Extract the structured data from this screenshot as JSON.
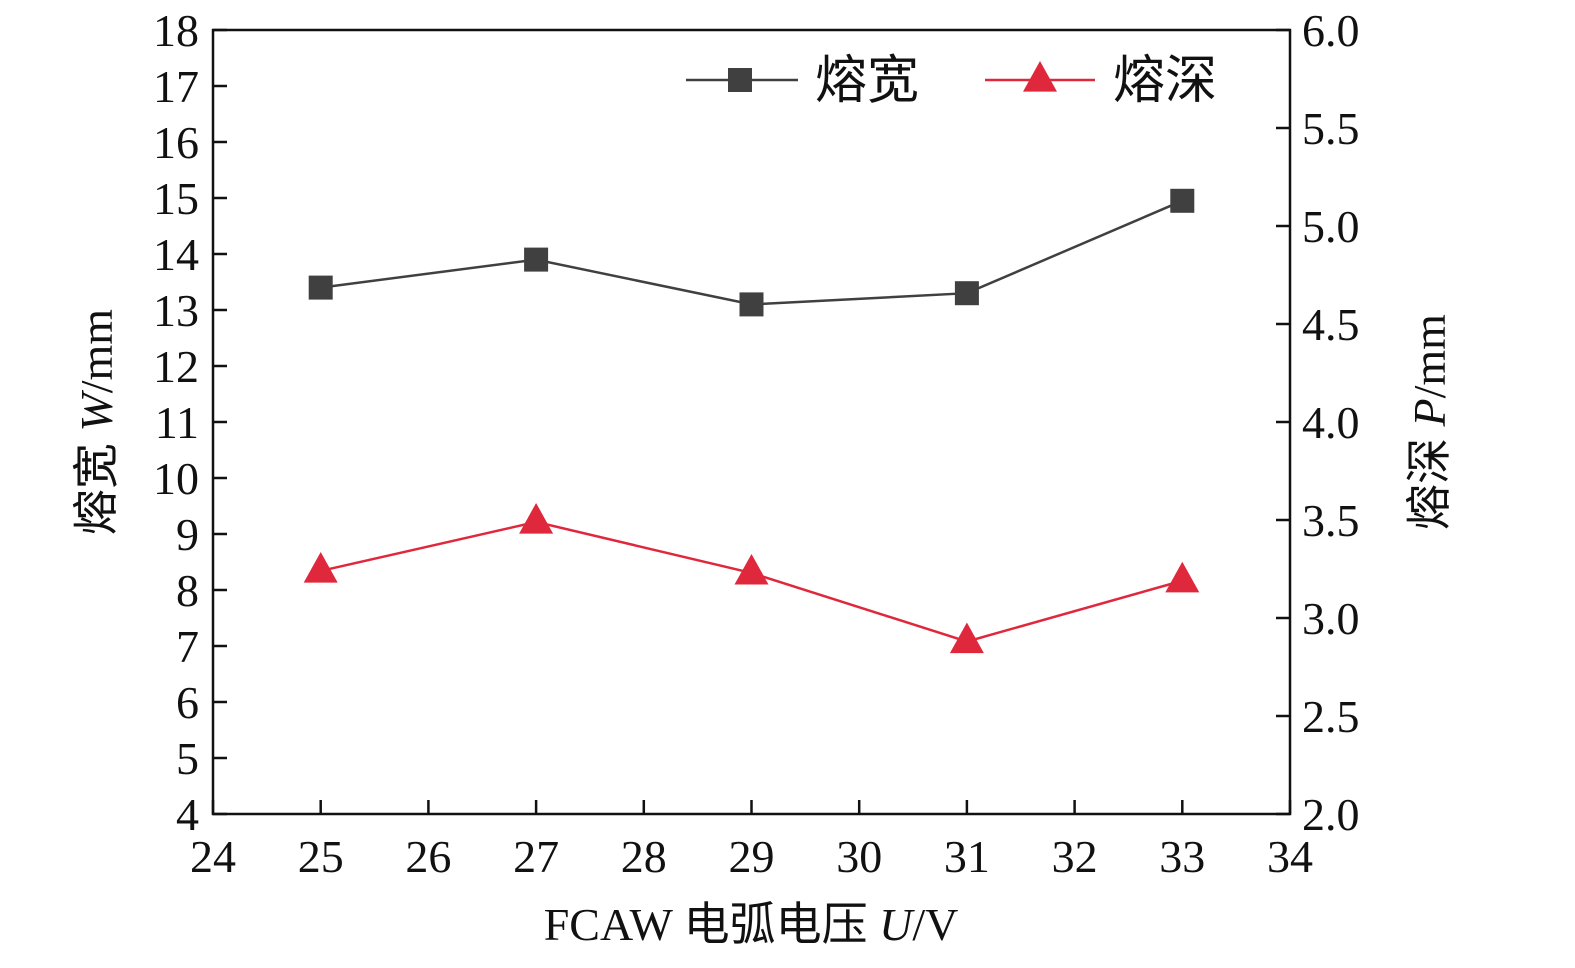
{
  "chart_data": {
    "type": "line",
    "x": [
      25,
      27,
      29,
      31,
      33
    ],
    "xlim": [
      24,
      34
    ],
    "x_ticks": [
      "24",
      "25",
      "26",
      "27",
      "28",
      "29",
      "30",
      "31",
      "32",
      "33",
      "34"
    ],
    "xlabel": {
      "prefix": "FCAW 电弧电压 ",
      "symbol": "U",
      "suffix": "/V"
    },
    "ylabel_left": {
      "prefix": "熔宽 ",
      "symbol": "W",
      "suffix": "/mm"
    },
    "ylabel_right": {
      "prefix": "熔深 ",
      "symbol": "P",
      "suffix": "/mm"
    },
    "ylim_left": [
      4,
      18
    ],
    "y_left_ticks": [
      "4",
      "5",
      "6",
      "7",
      "8",
      "9",
      "10",
      "11",
      "12",
      "13",
      "14",
      "15",
      "16",
      "17",
      "18"
    ],
    "ylim_right": [
      2.0,
      6.0
    ],
    "y_right_ticks": [
      "2.0",
      "2.5",
      "3.0",
      "3.5",
      "4.0",
      "4.5",
      "5.0",
      "5.5",
      "6.0"
    ],
    "grid": false,
    "legend_position": "top-right",
    "series": [
      {
        "name": "熔宽",
        "axis": "left",
        "marker": "square",
        "color": "#404040",
        "values": [
          13.4,
          13.9,
          13.1,
          13.3,
          14.95
        ]
      },
      {
        "name": "熔深",
        "axis": "right",
        "marker": "triangle",
        "color": "#e0283c",
        "values": [
          3.24,
          3.49,
          3.23,
          2.88,
          3.19
        ]
      }
    ]
  }
}
